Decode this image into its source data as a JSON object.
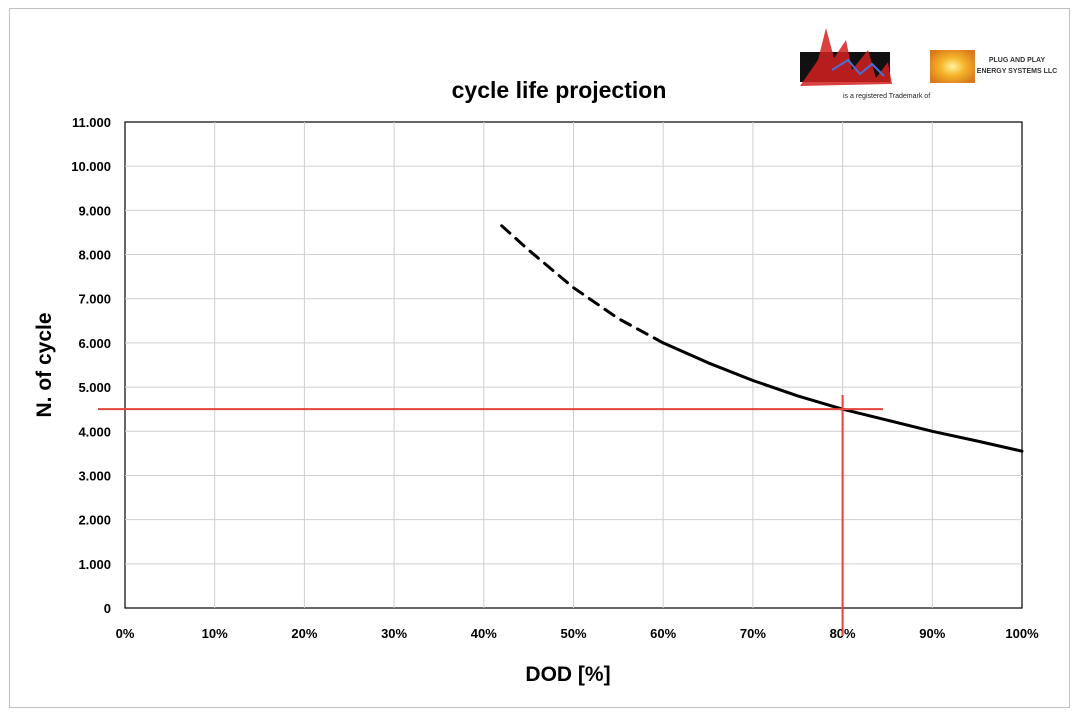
{
  "chart_data": {
    "type": "line",
    "title": "cycle life projection",
    "xlabel": "DOD [%]",
    "ylabel": "N. of cycle",
    "xlim": [
      0,
      100
    ],
    "ylim": [
      0,
      11000
    ],
    "x_ticks": [
      "0%",
      "10%",
      "20%",
      "30%",
      "40%",
      "50%",
      "60%",
      "70%",
      "80%",
      "90%",
      "100%"
    ],
    "y_ticks": [
      "0",
      "1.000",
      "2.000",
      "3.000",
      "4.000",
      "5.000",
      "6.000",
      "7.000",
      "8.000",
      "9.000",
      "10.000",
      "11.000"
    ],
    "grid": true,
    "series": [
      {
        "style": "dashed",
        "color": "#000000",
        "x": [
          42,
          45,
          50,
          55,
          60
        ],
        "y": [
          8650,
          8100,
          7250,
          6550,
          6000
        ]
      },
      {
        "style": "solid",
        "color": "#000000",
        "x": [
          60,
          65,
          70,
          75,
          80,
          85,
          90,
          95,
          100
        ],
        "y": [
          6000,
          5550,
          5150,
          4800,
          4500,
          4250,
          4000,
          3780,
          3550
        ]
      }
    ],
    "reference_lines": {
      "color": "#e0443a",
      "horizontal_y": 4500,
      "vertical_x": 80
    }
  },
  "logos": {
    "left_caption": "is a registered Trademark of",
    "right_line1": "PLUG AND PLAY",
    "right_line2": "ENERGY SYSTEMS LLC",
    "left_color": "#d42020",
    "right_color": "#f0a020"
  }
}
